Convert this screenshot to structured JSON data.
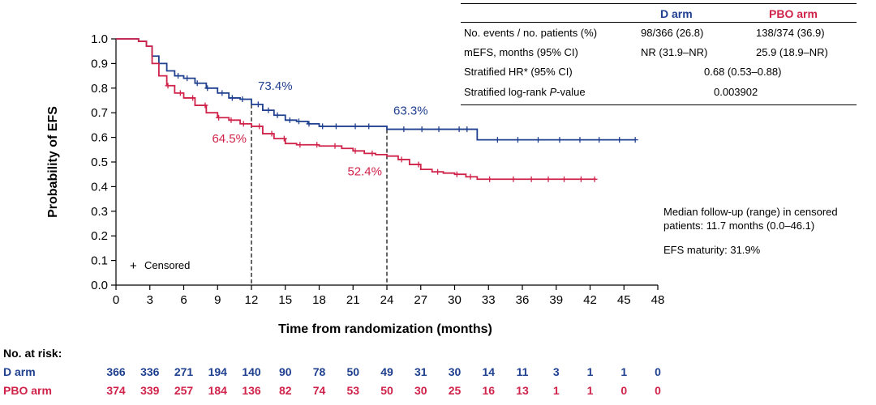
{
  "chart_data": {
    "type": "line",
    "xlabel": "Time from randomization (months)",
    "ylabel": "Probability of EFS",
    "xlim": [
      0,
      48
    ],
    "ylim": [
      0,
      1.0
    ],
    "xticks": [
      0,
      3,
      6,
      9,
      12,
      15,
      18,
      21,
      24,
      27,
      30,
      33,
      36,
      39,
      42,
      45,
      48
    ],
    "yticks": [
      0.0,
      0.1,
      0.2,
      0.3,
      0.4,
      0.5,
      0.6,
      0.7,
      0.8,
      0.9,
      1.0
    ],
    "series": [
      {
        "name": "D arm",
        "color": "#1f3f8f",
        "x": [
          0,
          2,
          2.7,
          3.2,
          3.8,
          4.5,
          5.2,
          6,
          7,
          8,
          9,
          10,
          11,
          12,
          13,
          14,
          15,
          16,
          17,
          18,
          20,
          22,
          24,
          26,
          28,
          30,
          31.5,
          32,
          34,
          36,
          38,
          40,
          42,
          44,
          46
        ],
        "y": [
          1.0,
          0.99,
          0.97,
          0.93,
          0.9,
          0.87,
          0.85,
          0.84,
          0.82,
          0.8,
          0.78,
          0.76,
          0.755,
          0.734,
          0.71,
          0.69,
          0.67,
          0.665,
          0.655,
          0.645,
          0.645,
          0.645,
          0.633,
          0.633,
          0.633,
          0.633,
          0.633,
          0.59,
          0.59,
          0.59,
          0.59,
          0.59,
          0.59,
          0.59,
          0.59
        ],
        "censored_x": [
          5.5,
          6.3,
          7.2,
          8.1,
          9.4,
          10.3,
          11.2,
          12.6,
          13.5,
          14.3,
          15.4,
          16.2,
          17.1,
          18.3,
          19.5,
          21.2,
          22.4,
          25.5,
          27.1,
          28.6,
          30.4,
          31.1,
          33.8,
          35.6,
          37.4,
          39.3,
          41.1,
          42.8,
          44.6,
          46.0
        ]
      },
      {
        "name": "PBO arm",
        "color": "#d0234a",
        "x": [
          0,
          2,
          2.7,
          3.2,
          3.8,
          4.5,
          5.2,
          6,
          7,
          8,
          9,
          10,
          11,
          12,
          13,
          14,
          15,
          16,
          18,
          20,
          21,
          22,
          23,
          24,
          25,
          26,
          27,
          28,
          29,
          30,
          31,
          32,
          34,
          36,
          38,
          40,
          42,
          42.5
        ],
        "y": [
          1.0,
          0.99,
          0.97,
          0.9,
          0.85,
          0.81,
          0.78,
          0.76,
          0.73,
          0.7,
          0.68,
          0.67,
          0.655,
          0.645,
          0.615,
          0.595,
          0.575,
          0.57,
          0.565,
          0.555,
          0.545,
          0.535,
          0.53,
          0.524,
          0.51,
          0.49,
          0.47,
          0.46,
          0.455,
          0.45,
          0.44,
          0.43,
          0.43,
          0.43,
          0.43,
          0.43,
          0.43,
          0.43
        ],
        "censored_x": [
          4.6,
          5.7,
          6.8,
          7.9,
          9.1,
          10.2,
          11.3,
          12.7,
          13.8,
          14.9,
          16.3,
          17.8,
          19.4,
          21.2,
          22.7,
          25.3,
          26.8,
          28.5,
          30.2,
          31.4,
          33.1,
          35.2,
          36.8,
          38.3,
          39.7,
          41.2,
          42.4
        ]
      }
    ],
    "reference_lines": [
      {
        "x": 12
      },
      {
        "x": 24
      }
    ],
    "annotations": [
      {
        "text": "73.4%",
        "x": 12,
        "y": 0.734,
        "series": "D arm"
      },
      {
        "text": "64.5%",
        "x": 12,
        "y": 0.645,
        "series": "PBO arm"
      },
      {
        "text": "63.3%",
        "x": 24,
        "y": 0.633,
        "series": "D arm"
      },
      {
        "text": "52.4%",
        "x": 24,
        "y": 0.524,
        "series": "PBO arm"
      }
    ],
    "legend": {
      "symbol": "+",
      "text": "Censored"
    }
  },
  "stats_table": {
    "headers": [
      "",
      "D arm",
      "PBO arm"
    ],
    "rows": [
      {
        "label": "No. events / no. patients (%)",
        "d": "98/366 (26.8)",
        "pbo": "138/374 (36.9)"
      },
      {
        "label": "mEFS, months (95% CI)",
        "d": "NR (31.9–NR)",
        "pbo": "25.9 (18.9–NR)"
      },
      {
        "label": "Stratified HR* (95% CI)",
        "combined": "0.68 (0.53–0.88)"
      }
    ],
    "pvalue": {
      "label_before": "Stratified log-rank ",
      "label_italic": "P",
      "label_after": "-value",
      "value": "0.003902"
    }
  },
  "side_notes": {
    "followup_line1": "Median follow-up (range) in censored",
    "followup_line2": "patients: 11.7 months (0.0–46.1)",
    "maturity": "EFS maturity: 31.9%"
  },
  "at_risk": {
    "title": "No. at risk:",
    "rows": [
      {
        "label": "D arm",
        "color": "#1f3f8f",
        "values": [
          366,
          336,
          271,
          194,
          140,
          90,
          78,
          50,
          49,
          31,
          30,
          14,
          11,
          3,
          1,
          1,
          0
        ]
      },
      {
        "label": "PBO arm",
        "color": "#d0234a",
        "values": [
          374,
          339,
          257,
          184,
          136,
          82,
          74,
          53,
          50,
          30,
          25,
          16,
          13,
          1,
          1,
          0,
          0
        ]
      }
    ]
  }
}
